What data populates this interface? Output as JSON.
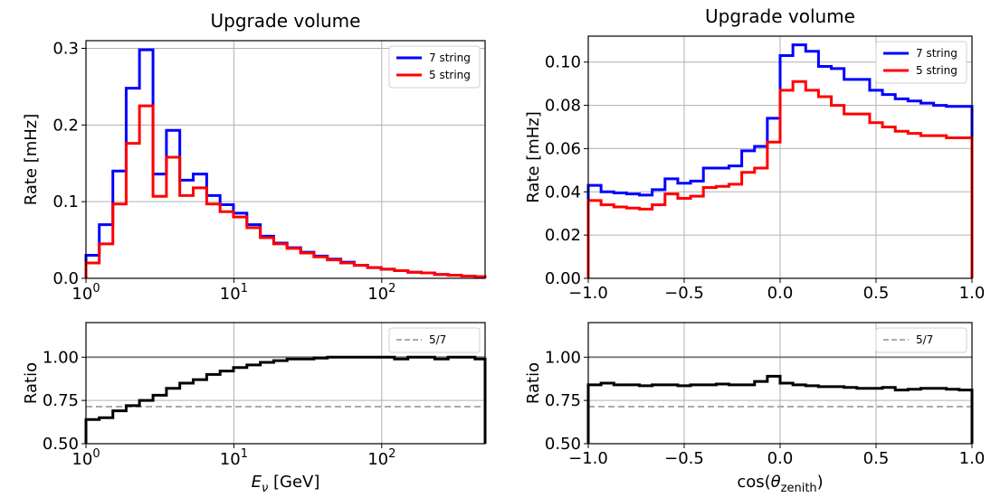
{
  "chart_data": [
    {
      "panel": "energy-rate",
      "type": "line",
      "title": "Upgrade volume",
      "xlabel": "",
      "ylabel": "Rate [mHz]",
      "xscale": "log",
      "xlim": [
        1,
        500
      ],
      "ylim": [
        0,
        0.31
      ],
      "xticks": [
        1,
        10,
        100
      ],
      "xtick_labels": [
        {
          "base": "10",
          "exp": "0"
        },
        {
          "base": "10",
          "exp": "1"
        },
        {
          "base": "10",
          "exp": "2"
        }
      ],
      "yticks": [
        0.0,
        0.1,
        0.2,
        0.3
      ],
      "ytick_labels": [
        "0.0",
        "0.1",
        "0.2",
        "0.3"
      ],
      "grid": true,
      "legend_position": "top-right",
      "bin_edges": [
        1.0,
        1.23,
        1.52,
        1.87,
        2.3,
        2.84,
        3.5,
        4.31,
        5.31,
        6.55,
        8.07,
        9.94,
        12.25,
        15.1,
        18.6,
        22.9,
        28.3,
        34.8,
        42.9,
        52.9,
        65.2,
        80.3,
        99.0,
        122.0,
        150.3,
        185.2,
        228.3,
        281.3,
        346.7,
        427.3,
        500.0
      ],
      "series": [
        {
          "name": "7 string",
          "color": "#0000ff",
          "values": [
            0.03,
            0.07,
            0.14,
            0.248,
            0.298,
            0.136,
            0.193,
            0.128,
            0.136,
            0.108,
            0.096,
            0.085,
            0.07,
            0.055,
            0.046,
            0.04,
            0.034,
            0.029,
            0.025,
            0.021,
            0.017,
            0.014,
            0.012,
            0.01,
            0.008,
            0.007,
            0.005,
            0.004,
            0.003,
            0.002
          ]
        },
        {
          "name": "5 string",
          "color": "#ff0000",
          "values": [
            0.02,
            0.045,
            0.097,
            0.176,
            0.225,
            0.107,
            0.158,
            0.108,
            0.118,
            0.097,
            0.087,
            0.08,
            0.066,
            0.053,
            0.045,
            0.039,
            0.033,
            0.028,
            0.024,
            0.02,
            0.017,
            0.014,
            0.012,
            0.01,
            0.008,
            0.007,
            0.005,
            0.004,
            0.003,
            0.002
          ]
        }
      ]
    },
    {
      "panel": "energy-ratio",
      "type": "line",
      "xlabel": "E_ν [GeV]",
      "ylabel": "Ratio",
      "xscale": "log",
      "xlim": [
        1,
        500
      ],
      "ylim": [
        0.5,
        1.2
      ],
      "xticks": [
        1,
        10,
        100
      ],
      "xtick_labels": [
        {
          "base": "10",
          "exp": "0"
        },
        {
          "base": "10",
          "exp": "1"
        },
        {
          "base": "10",
          "exp": "2"
        }
      ],
      "yticks": [
        0.5,
        0.75,
        1.0
      ],
      "ytick_labels": [
        "0.50",
        "0.75",
        "1.00"
      ],
      "grid": true,
      "legend_position": "top-right",
      "reference_line": {
        "name": "5/7",
        "value": 0.714,
        "color": "#aaaaaa",
        "style": "dashed"
      },
      "unity_line": 1.0,
      "bin_edges": [
        1.0,
        1.23,
        1.52,
        1.87,
        2.3,
        2.84,
        3.5,
        4.31,
        5.31,
        6.55,
        8.07,
        9.94,
        12.25,
        15.1,
        18.6,
        22.9,
        28.3,
        34.8,
        42.9,
        52.9,
        65.2,
        80.3,
        99.0,
        122.0,
        150.3,
        185.2,
        228.3,
        281.3,
        346.7,
        427.3,
        500.0
      ],
      "series": [
        {
          "name": "ratio",
          "color": "#000000",
          "values": [
            0.64,
            0.65,
            0.69,
            0.72,
            0.75,
            0.78,
            0.82,
            0.85,
            0.87,
            0.9,
            0.92,
            0.94,
            0.955,
            0.97,
            0.98,
            0.99,
            0.99,
            0.995,
            1.0,
            1.0,
            1.0,
            1.0,
            1.0,
            0.99,
            1.0,
            1.0,
            0.99,
            1.0,
            1.0,
            0.99
          ]
        }
      ]
    },
    {
      "panel": "zenith-rate",
      "type": "line",
      "title": "Upgrade volume",
      "xlabel": "",
      "ylabel": "Rate [mHz]",
      "xlim": [
        -1.0,
        1.0
      ],
      "ylim": [
        0,
        0.112
      ],
      "xticks": [
        -1.0,
        -0.5,
        0.0,
        0.5,
        1.0
      ],
      "xtick_labels": [
        "−1.0",
        "−0.5",
        "0.0",
        "0.5",
        "1.0"
      ],
      "yticks": [
        0.0,
        0.02,
        0.04,
        0.06,
        0.08,
        0.1
      ],
      "ytick_labels": [
        "0.00",
        "0.02",
        "0.04",
        "0.06",
        "0.08",
        "0.10"
      ],
      "grid": true,
      "legend_position": "top-right",
      "bin_start": -1.0,
      "bin_width": 0.0667,
      "series": [
        {
          "name": "7 string",
          "color": "#0000ff",
          "values": [
            0.043,
            0.04,
            0.0395,
            0.039,
            0.0385,
            0.041,
            0.046,
            0.044,
            0.045,
            0.051,
            0.051,
            0.052,
            0.059,
            0.061,
            0.074,
            0.103,
            0.108,
            0.105,
            0.098,
            0.097,
            0.092,
            0.092,
            0.087,
            0.085,
            0.083,
            0.082,
            0.081,
            0.08,
            0.0795,
            0.0795
          ]
        },
        {
          "name": "5 string",
          "color": "#ff0000",
          "values": [
            0.036,
            0.034,
            0.033,
            0.0325,
            0.032,
            0.034,
            0.039,
            0.037,
            0.038,
            0.042,
            0.0425,
            0.0435,
            0.049,
            0.051,
            0.063,
            0.087,
            0.091,
            0.087,
            0.084,
            0.08,
            0.076,
            0.076,
            0.072,
            0.07,
            0.068,
            0.067,
            0.066,
            0.066,
            0.065,
            0.065
          ]
        }
      ]
    },
    {
      "panel": "zenith-ratio",
      "type": "line",
      "xlabel": "cos(θ_zenith)",
      "ylabel": "Ratio",
      "xlim": [
        -1.0,
        1.0
      ],
      "ylim": [
        0.5,
        1.2
      ],
      "xticks": [
        -1.0,
        -0.5,
        0.0,
        0.5,
        1.0
      ],
      "xtick_labels": [
        "−1.0",
        "−0.5",
        "0.0",
        "0.5",
        "1.0"
      ],
      "yticks": [
        0.5,
        0.75,
        1.0
      ],
      "ytick_labels": [
        "0.50",
        "0.75",
        "1.00"
      ],
      "grid": true,
      "legend_position": "top-right",
      "reference_line": {
        "name": "5/7",
        "value": 0.714,
        "color": "#aaaaaa",
        "style": "dashed"
      },
      "unity_line": 1.0,
      "bin_start": -1.0,
      "bin_width": 0.0667,
      "series": [
        {
          "name": "ratio",
          "color": "#000000",
          "values": [
            0.84,
            0.85,
            0.84,
            0.84,
            0.835,
            0.84,
            0.84,
            0.835,
            0.84,
            0.84,
            0.845,
            0.84,
            0.84,
            0.86,
            0.89,
            0.85,
            0.84,
            0.835,
            0.83,
            0.83,
            0.825,
            0.82,
            0.82,
            0.825,
            0.81,
            0.815,
            0.82,
            0.82,
            0.815,
            0.81
          ]
        }
      ]
    }
  ]
}
